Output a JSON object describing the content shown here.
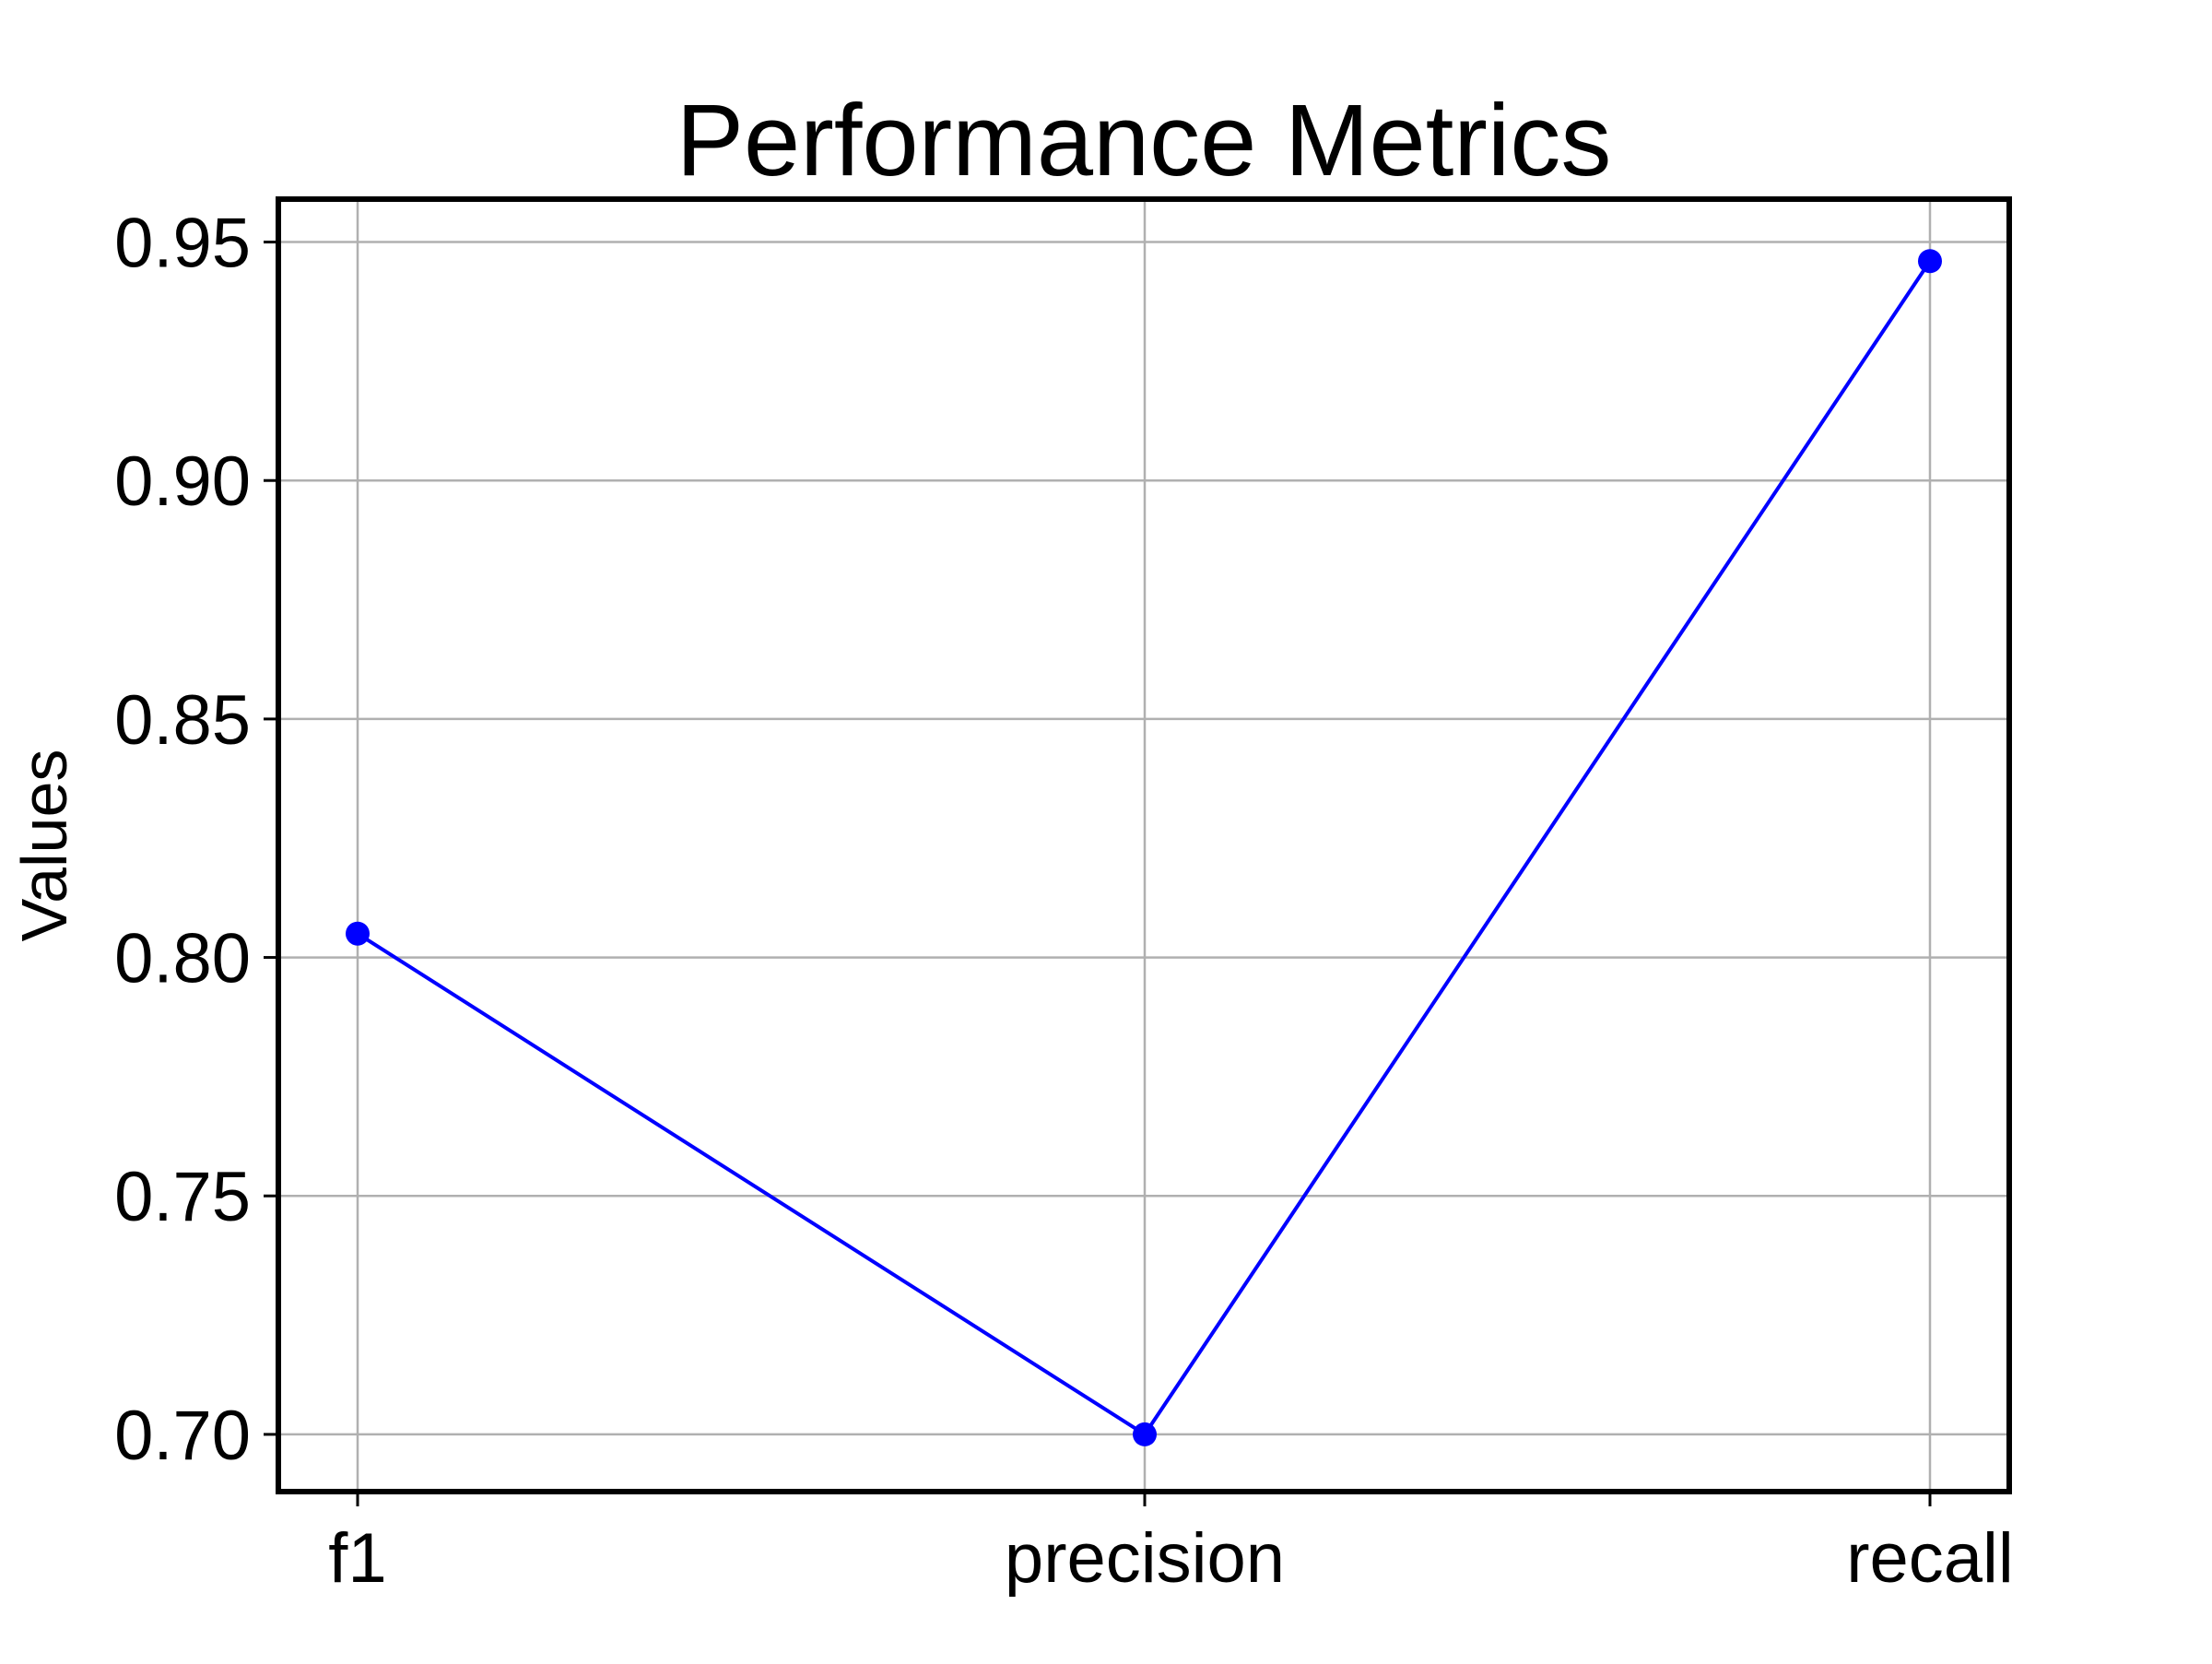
{
  "chart_data": {
    "type": "line",
    "title": "Performance Metrics",
    "xlabel": "",
    "ylabel": "Values",
    "categories": [
      "f1",
      "precision",
      "recall"
    ],
    "series": [
      {
        "values": [
          0.805,
          0.7,
          0.946
        ],
        "color": "#0000ff",
        "marker": "circle"
      }
    ],
    "ylim": [
      0.688,
      0.959
    ],
    "yticks": [
      "0.70",
      "0.75",
      "0.80",
      "0.85",
      "0.90",
      "0.95"
    ],
    "grid": true,
    "legend": "none"
  }
}
